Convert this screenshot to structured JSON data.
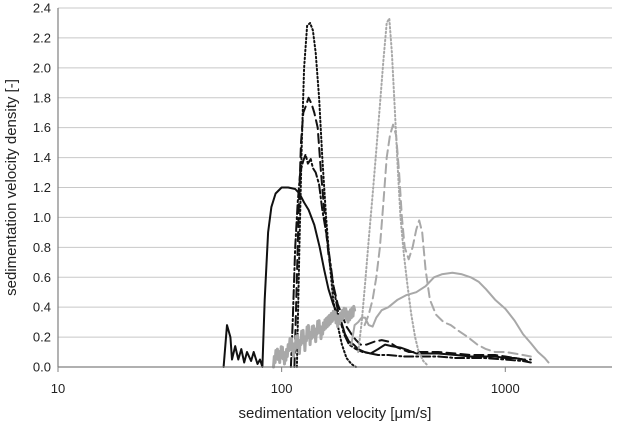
{
  "chart_data": {
    "type": "line",
    "title": "",
    "xlabel": "sedimentation velocity [μm/s]",
    "ylabel": "sedimentation velocity density [-]",
    "xscale": "log",
    "xlim": [
      10,
      3000
    ],
    "ylim": [
      0,
      2.4
    ],
    "xticks": [
      10,
      100,
      1000
    ],
    "xtick_labels": [
      "10",
      "100",
      "1000"
    ],
    "yticks": [
      0,
      0.2,
      0.4,
      0.6,
      0.8,
      1.0,
      1.2,
      1.4,
      1.6,
      1.8,
      2.0,
      2.2,
      2.4
    ],
    "ytick_labels": [
      "0.0",
      "0.2",
      "0.4",
      "0.6",
      "0.8",
      "1.0",
      "1.2",
      "1.4",
      "1.6",
      "1.8",
      "2.0",
      "2.2",
      "2.4"
    ],
    "grid": "horizontal",
    "legend": "none",
    "colors": {
      "black": "#111111",
      "gray": "#a8a8a8",
      "grid": "#c8c8c8",
      "axis": "#808080"
    },
    "series": [
      {
        "name": "black-solid",
        "color": "black",
        "dash": "solid",
        "points": [
          [
            55,
            0
          ],
          [
            57,
            0.28
          ],
          [
            59,
            0.2
          ],
          [
            60,
            0.05
          ],
          [
            62,
            0.14
          ],
          [
            64,
            0.05
          ],
          [
            66,
            0.12
          ],
          [
            68,
            0.03
          ],
          [
            70,
            0.1
          ],
          [
            73,
            0.04
          ],
          [
            75,
            0.1
          ],
          [
            78,
            0.02
          ],
          [
            80,
            0.05
          ],
          [
            82,
            0.0
          ],
          [
            84,
            0.45
          ],
          [
            87,
            0.9
          ],
          [
            90,
            1.07
          ],
          [
            94,
            1.16
          ],
          [
            100,
            1.2
          ],
          [
            107,
            1.2
          ],
          [
            115,
            1.19
          ],
          [
            120,
            1.16
          ],
          [
            126,
            1.1
          ],
          [
            132,
            1.05
          ],
          [
            140,
            0.95
          ],
          [
            148,
            0.8
          ],
          [
            155,
            0.65
          ],
          [
            162,
            0.52
          ],
          [
            170,
            0.42
          ],
          [
            178,
            0.35
          ],
          [
            185,
            0.3
          ],
          [
            192,
            0.22
          ],
          [
            200,
            0.17
          ],
          [
            210,
            0.15
          ],
          [
            220,
            0.12
          ],
          [
            235,
            0.1
          ],
          [
            250,
            0.09
          ],
          [
            270,
            0.12
          ],
          [
            290,
            0.15
          ],
          [
            310,
            0.14
          ],
          [
            340,
            0.13
          ],
          [
            370,
            0.11
          ],
          [
            400,
            0.09
          ],
          [
            450,
            0.09
          ],
          [
            500,
            0.09
          ],
          [
            600,
            0.08
          ],
          [
            700,
            0.07
          ],
          [
            800,
            0.07
          ],
          [
            900,
            0.07
          ],
          [
            1000,
            0.06
          ],
          [
            1100,
            0.06
          ],
          [
            1200,
            0.05
          ],
          [
            1250,
            0.04
          ]
        ]
      },
      {
        "name": "black-dashdot",
        "color": "black",
        "dash": "dashdot",
        "points": [
          [
            110,
            0
          ],
          [
            112,
            0.3
          ],
          [
            115,
            0.8
          ],
          [
            118,
            1.1
          ],
          [
            121,
            1.3
          ],
          [
            125,
            1.38
          ],
          [
            128,
            1.42
          ],
          [
            131,
            1.36
          ],
          [
            135,
            1.39
          ],
          [
            138,
            1.33
          ],
          [
            142,
            1.3
          ],
          [
            147,
            1.22
          ],
          [
            152,
            1.05
          ],
          [
            158,
            0.9
          ],
          [
            165,
            0.7
          ],
          [
            172,
            0.5
          ],
          [
            180,
            0.35
          ],
          [
            190,
            0.22
          ],
          [
            200,
            0.15
          ],
          [
            215,
            0.12
          ],
          [
            230,
            0.1
          ],
          [
            250,
            0.09
          ],
          [
            270,
            0.08
          ],
          [
            300,
            0.08
          ],
          [
            350,
            0.07
          ],
          [
            400,
            0.07
          ],
          [
            500,
            0.07
          ],
          [
            600,
            0.06
          ],
          [
            700,
            0.06
          ],
          [
            800,
            0.06
          ],
          [
            1000,
            0.05
          ],
          [
            1200,
            0.04
          ],
          [
            1300,
            0.03
          ]
        ]
      },
      {
        "name": "black-dashed",
        "color": "black",
        "dash": "dashed",
        "points": [
          [
            114,
            0
          ],
          [
            116,
            0.4
          ],
          [
            119,
            1.0
          ],
          [
            122,
            1.5
          ],
          [
            125,
            1.7
          ],
          [
            128,
            1.74
          ],
          [
            132,
            1.8
          ],
          [
            136,
            1.76
          ],
          [
            140,
            1.7
          ],
          [
            145,
            1.6
          ],
          [
            150,
            1.3
          ],
          [
            156,
            1.0
          ],
          [
            162,
            0.75
          ],
          [
            170,
            0.55
          ],
          [
            178,
            0.42
          ],
          [
            186,
            0.35
          ],
          [
            195,
            0.27
          ],
          [
            205,
            0.22
          ],
          [
            215,
            0.18
          ],
          [
            225,
            0.15
          ],
          [
            240,
            0.15
          ],
          [
            260,
            0.17
          ],
          [
            280,
            0.18
          ],
          [
            300,
            0.17
          ],
          [
            330,
            0.13
          ],
          [
            370,
            0.1
          ],
          [
            420,
            0.1
          ],
          [
            500,
            0.1
          ],
          [
            600,
            0.09
          ],
          [
            700,
            0.08
          ],
          [
            800,
            0.08
          ],
          [
            900,
            0.08
          ],
          [
            1000,
            0.07
          ],
          [
            1100,
            0.06
          ],
          [
            1200,
            0.05
          ],
          [
            1300,
            0.05
          ]
        ]
      },
      {
        "name": "black-dotted",
        "color": "black",
        "dash": "dotted",
        "points": [
          [
            117,
            0
          ],
          [
            120,
            0.8
          ],
          [
            123,
            1.5
          ],
          [
            126,
            2.0
          ],
          [
            130,
            2.28
          ],
          [
            134,
            2.3
          ],
          [
            138,
            2.25
          ],
          [
            142,
            2.1
          ],
          [
            147,
            1.8
          ],
          [
            152,
            1.4
          ],
          [
            158,
            1.0
          ],
          [
            164,
            0.7
          ],
          [
            170,
            0.45
          ],
          [
            178,
            0.28
          ],
          [
            186,
            0.15
          ],
          [
            195,
            0.06
          ],
          [
            205,
            0.02
          ],
          [
            215,
            0.0
          ]
        ]
      },
      {
        "name": "gray-solid",
        "color": "gray",
        "dash": "solid",
        "points": [
          [
            205,
            0.15
          ],
          [
            212,
            0.28
          ],
          [
            220,
            0.3
          ],
          [
            228,
            0.33
          ],
          [
            236,
            0.33
          ],
          [
            245,
            0.28
          ],
          [
            255,
            0.27
          ],
          [
            265,
            0.33
          ],
          [
            280,
            0.38
          ],
          [
            300,
            0.4
          ],
          [
            330,
            0.45
          ],
          [
            360,
            0.48
          ],
          [
            400,
            0.5
          ],
          [
            440,
            0.54
          ],
          [
            480,
            0.6
          ],
          [
            520,
            0.62
          ],
          [
            580,
            0.63
          ],
          [
            640,
            0.62
          ],
          [
            700,
            0.6
          ],
          [
            760,
            0.57
          ],
          [
            820,
            0.52
          ],
          [
            900,
            0.45
          ],
          [
            1000,
            0.39
          ],
          [
            1100,
            0.31
          ],
          [
            1200,
            0.22
          ],
          [
            1300,
            0.16
          ],
          [
            1400,
            0.1
          ],
          [
            1500,
            0.06
          ],
          [
            1560,
            0.03
          ]
        ]
      },
      {
        "name": "gray-dashed",
        "color": "gray",
        "dash": "dashed",
        "points": [
          [
            235,
            0.28
          ],
          [
            245,
            0.35
          ],
          [
            255,
            0.45
          ],
          [
            265,
            0.6
          ],
          [
            275,
            0.8
          ],
          [
            285,
            1.1
          ],
          [
            295,
            1.4
          ],
          [
            305,
            1.55
          ],
          [
            315,
            1.62
          ],
          [
            325,
            1.55
          ],
          [
            335,
            1.3
          ],
          [
            345,
            1.0
          ],
          [
            355,
            0.8
          ],
          [
            370,
            0.72
          ],
          [
            385,
            0.8
          ],
          [
            400,
            0.92
          ],
          [
            412,
            0.98
          ],
          [
            425,
            0.9
          ],
          [
            440,
            0.65
          ],
          [
            460,
            0.45
          ],
          [
            490,
            0.35
          ],
          [
            530,
            0.3
          ],
          [
            570,
            0.28
          ],
          [
            620,
            0.24
          ],
          [
            680,
            0.2
          ],
          [
            750,
            0.15
          ],
          [
            820,
            0.12
          ],
          [
            900,
            0.1
          ],
          [
            1000,
            0.1
          ],
          [
            1100,
            0.09
          ],
          [
            1200,
            0.08
          ],
          [
            1300,
            0.07
          ]
        ]
      },
      {
        "name": "gray-dotted",
        "color": "gray",
        "dash": "dotted",
        "points": [
          [
            220,
            0.1
          ],
          [
            228,
            0.3
          ],
          [
            236,
            0.55
          ],
          [
            245,
            0.85
          ],
          [
            255,
            1.15
          ],
          [
            265,
            1.45
          ],
          [
            275,
            1.75
          ],
          [
            285,
            2.05
          ],
          [
            295,
            2.3
          ],
          [
            303,
            2.33
          ],
          [
            311,
            2.1
          ],
          [
            320,
            1.75
          ],
          [
            330,
            1.35
          ],
          [
            340,
            1.0
          ],
          [
            352,
            0.75
          ],
          [
            365,
            0.55
          ],
          [
            380,
            0.35
          ],
          [
            395,
            0.2
          ],
          [
            410,
            0.1
          ],
          [
            430,
            0.04
          ],
          [
            450,
            0.01
          ]
        ]
      },
      {
        "name": "gray-noisy",
        "color": "gray",
        "dash": "solid",
        "noisy": true,
        "points": [
          [
            92,
            0.02
          ],
          [
            95,
            0.1
          ],
          [
            98,
            0.06
          ],
          [
            100,
            0.12
          ],
          [
            103,
            0.05
          ],
          [
            106,
            0.1
          ],
          [
            110,
            0.18
          ],
          [
            113,
            0.1
          ],
          [
            117,
            0.2
          ],
          [
            120,
            0.12
          ],
          [
            124,
            0.24
          ],
          [
            127,
            0.14
          ],
          [
            131,
            0.27
          ],
          [
            134,
            0.18
          ],
          [
            138,
            0.26
          ],
          [
            142,
            0.2
          ],
          [
            146,
            0.3
          ],
          [
            150,
            0.22
          ],
          [
            155,
            0.28
          ],
          [
            160,
            0.3
          ],
          [
            165,
            0.32
          ],
          [
            172,
            0.35
          ],
          [
            178,
            0.3
          ],
          [
            185,
            0.34
          ],
          [
            192,
            0.37
          ],
          [
            198,
            0.33
          ],
          [
            205,
            0.36
          ],
          [
            212,
            0.38
          ]
        ]
      }
    ]
  }
}
